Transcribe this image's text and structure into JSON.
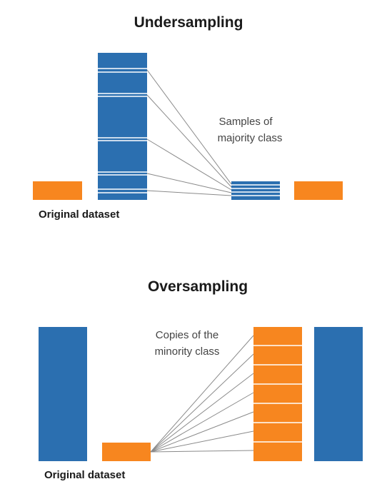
{
  "colors": {
    "majority": "#2b6fb0",
    "minority": "#f7861f",
    "line": "#8a8a8a",
    "divider": "#ffffff"
  },
  "undersampling": {
    "title": "Undersampling",
    "annotation_lines": [
      "Samples of",
      "majority class"
    ],
    "label": "Original dataset"
  },
  "oversampling": {
    "title": "Oversampling",
    "annotation_lines": [
      "Copies of the",
      "minority class"
    ],
    "label": "Original dataset"
  }
}
